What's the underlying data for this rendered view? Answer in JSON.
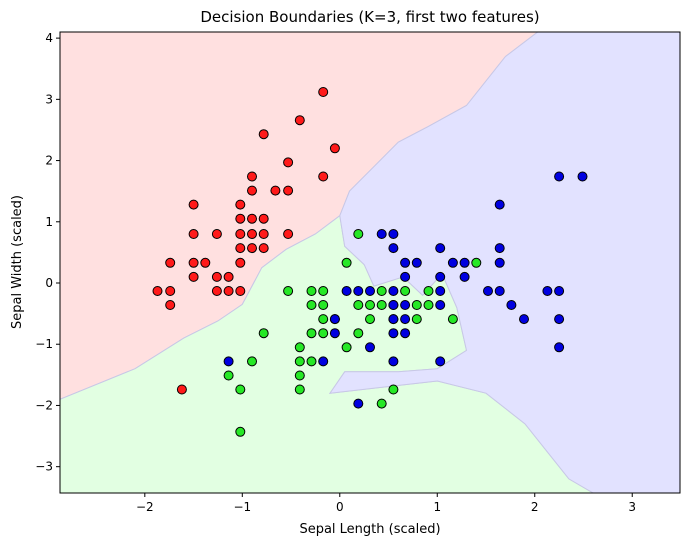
{
  "chart_data": {
    "type": "scatter",
    "title": "Decision Boundaries (K=3, first two features)",
    "xlabel": "Sepal Length (scaled)",
    "ylabel": "Sepal Width (scaled)",
    "xlim": [
      -2.87,
      3.49
    ],
    "ylim": [
      -3.43,
      4.1
    ],
    "xticks": [
      -2,
      -1,
      0,
      1,
      2,
      3
    ],
    "xtick_labels": [
      "−2",
      "−1",
      "0",
      "1",
      "2",
      "3"
    ],
    "yticks": [
      -3,
      -2,
      -1,
      0,
      1,
      2,
      3,
      4
    ],
    "ytick_labels": [
      "−3",
      "−2",
      "−1",
      "0",
      "1",
      "2",
      "3",
      "4"
    ],
    "grid": false,
    "legend": "none",
    "colors": {
      "region_red": "#ffe0e0",
      "region_green": "#e2ffe2",
      "region_blue": "#e2e2ff",
      "boundary": "#c8c8e6",
      "point_red": "#ff1a1a",
      "point_green": "#26e826",
      "point_blue": "#0000e0",
      "point_edge": "#000000"
    },
    "regions": [
      {
        "class": "red",
        "points": [
          [
            -2.87,
            4.1
          ],
          [
            2.03,
            4.1
          ],
          [
            1.7,
            3.7
          ],
          [
            1.3,
            2.9
          ],
          [
            0.9,
            2.55
          ],
          [
            0.6,
            2.3
          ],
          [
            0.35,
            1.9
          ],
          [
            0.1,
            1.5
          ],
          [
            0.0,
            1.1
          ],
          [
            -0.25,
            0.8
          ],
          [
            -0.55,
            0.55
          ],
          [
            -0.8,
            0.25
          ],
          [
            -1.0,
            -0.35
          ],
          [
            -1.25,
            -0.62
          ],
          [
            -1.6,
            -0.9
          ],
          [
            -2.1,
            -1.4
          ],
          [
            -2.87,
            -1.9
          ]
        ]
      },
      {
        "class": "green",
        "points": [
          [
            -2.87,
            -1.9
          ],
          [
            -2.1,
            -1.4
          ],
          [
            -1.6,
            -0.9
          ],
          [
            -1.25,
            -0.62
          ],
          [
            -1.0,
            -0.35
          ],
          [
            -0.8,
            0.25
          ],
          [
            -0.55,
            0.55
          ],
          [
            -0.25,
            0.8
          ],
          [
            0.0,
            1.1
          ],
          [
            0.05,
            0.6
          ],
          [
            0.25,
            0.3
          ],
          [
            0.35,
            -0.05
          ],
          [
            0.65,
            0.1
          ],
          [
            0.85,
            -0.2
          ],
          [
            1.05,
            0.15
          ],
          [
            1.2,
            -0.4
          ],
          [
            1.3,
            -1.1
          ],
          [
            1.0,
            -1.4
          ],
          [
            0.6,
            -1.45
          ],
          [
            0.05,
            -1.45
          ],
          [
            -0.1,
            -1.8
          ],
          [
            1.0,
            -1.6
          ],
          [
            1.5,
            -1.8
          ],
          [
            1.9,
            -2.3
          ],
          [
            2.1,
            -2.7
          ],
          [
            2.35,
            -3.2
          ],
          [
            2.6,
            -3.43
          ],
          [
            -2.87,
            -3.43
          ]
        ]
      },
      {
        "class": "blue",
        "points": [
          [
            2.03,
            4.1
          ],
          [
            3.49,
            4.1
          ],
          [
            3.49,
            -3.43
          ],
          [
            2.6,
            -3.43
          ],
          [
            2.35,
            -3.2
          ],
          [
            2.1,
            -2.7
          ],
          [
            1.9,
            -2.3
          ],
          [
            1.5,
            -1.8
          ],
          [
            1.0,
            -1.6
          ],
          [
            -0.1,
            -1.8
          ],
          [
            0.05,
            -1.45
          ],
          [
            0.6,
            -1.45
          ],
          [
            1.0,
            -1.4
          ],
          [
            1.3,
            -1.1
          ],
          [
            1.2,
            -0.4
          ],
          [
            1.05,
            0.15
          ],
          [
            0.85,
            -0.2
          ],
          [
            0.65,
            0.1
          ],
          [
            0.35,
            -0.05
          ],
          [
            0.25,
            0.3
          ],
          [
            0.05,
            0.6
          ],
          [
            0.0,
            1.1
          ],
          [
            0.1,
            1.5
          ],
          [
            0.35,
            1.9
          ],
          [
            0.6,
            2.3
          ],
          [
            0.9,
            2.55
          ],
          [
            1.3,
            2.9
          ],
          [
            1.7,
            3.7
          ]
        ]
      }
    ],
    "series": [
      {
        "class": "red",
        "points": [
          [
            -0.17,
            3.12
          ],
          [
            -0.41,
            2.66
          ],
          [
            -0.78,
            2.43
          ],
          [
            -0.05,
            2.2
          ],
          [
            -0.53,
            1.97
          ],
          [
            -0.9,
            1.74
          ],
          [
            -0.17,
            1.74
          ],
          [
            -0.9,
            1.51
          ],
          [
            -0.66,
            1.51
          ],
          [
            -0.53,
            1.51
          ],
          [
            -1.5,
            1.28
          ],
          [
            -1.02,
            1.28
          ],
          [
            -1.02,
            1.05
          ],
          [
            -0.9,
            1.05
          ],
          [
            -0.78,
            1.05
          ],
          [
            -1.5,
            0.8
          ],
          [
            -1.26,
            0.8
          ],
          [
            -1.02,
            0.8
          ],
          [
            -0.9,
            0.8
          ],
          [
            -0.78,
            0.8
          ],
          [
            -0.53,
            0.8
          ],
          [
            -1.02,
            0.57
          ],
          [
            -0.9,
            0.57
          ],
          [
            -0.78,
            0.57
          ],
          [
            -1.74,
            0.33
          ],
          [
            -1.5,
            0.33
          ],
          [
            -1.38,
            0.33
          ],
          [
            -1.02,
            0.33
          ],
          [
            -1.5,
            0.1
          ],
          [
            -1.26,
            0.1
          ],
          [
            -1.14,
            0.1
          ],
          [
            -1.87,
            -0.13
          ],
          [
            -1.74,
            -0.13
          ],
          [
            -1.26,
            -0.13
          ],
          [
            -1.14,
            -0.13
          ],
          [
            -1.02,
            -0.13
          ],
          [
            -1.74,
            -0.36
          ],
          [
            -1.62,
            -1.74
          ]
        ]
      },
      {
        "class": "green",
        "points": [
          [
            0.19,
            0.8
          ],
          [
            0.07,
            0.33
          ],
          [
            1.4,
            0.33
          ],
          [
            -0.53,
            -0.13
          ],
          [
            -0.29,
            -0.13
          ],
          [
            -0.17,
            -0.13
          ],
          [
            0.43,
            -0.13
          ],
          [
            0.67,
            -0.13
          ],
          [
            0.91,
            -0.13
          ],
          [
            -0.29,
            -0.36
          ],
          [
            -0.17,
            -0.36
          ],
          [
            0.19,
            -0.36
          ],
          [
            0.31,
            -0.36
          ],
          [
            0.43,
            -0.36
          ],
          [
            0.55,
            -0.36
          ],
          [
            0.79,
            -0.36
          ],
          [
            0.91,
            -0.36
          ],
          [
            -0.17,
            -0.59
          ],
          [
            -0.05,
            -0.59
          ],
          [
            0.31,
            -0.59
          ],
          [
            0.55,
            -0.59
          ],
          [
            0.79,
            -0.59
          ],
          [
            1.16,
            -0.59
          ],
          [
            -0.78,
            -0.82
          ],
          [
            -0.29,
            -0.82
          ],
          [
            -0.17,
            -0.82
          ],
          [
            0.19,
            -0.82
          ],
          [
            -0.41,
            -1.05
          ],
          [
            0.07,
            -1.05
          ],
          [
            -0.9,
            -1.28
          ],
          [
            -0.41,
            -1.28
          ],
          [
            -0.29,
            -1.28
          ],
          [
            -1.14,
            -1.51
          ],
          [
            -0.41,
            -1.51
          ],
          [
            -1.02,
            -1.74
          ],
          [
            -0.41,
            -1.74
          ],
          [
            0.55,
            -1.74
          ],
          [
            0.43,
            -1.97
          ],
          [
            -1.02,
            -2.43
          ]
        ]
      },
      {
        "class": "blue",
        "points": [
          [
            2.25,
            1.74
          ],
          [
            2.49,
            1.74
          ],
          [
            1.64,
            1.28
          ],
          [
            0.43,
            0.8
          ],
          [
            0.55,
            0.8
          ],
          [
            0.55,
            0.57
          ],
          [
            1.03,
            0.57
          ],
          [
            1.64,
            0.57
          ],
          [
            0.67,
            0.33
          ],
          [
            0.79,
            0.33
          ],
          [
            1.16,
            0.33
          ],
          [
            1.28,
            0.33
          ],
          [
            1.64,
            0.33
          ],
          [
            0.67,
            0.1
          ],
          [
            1.03,
            0.1
          ],
          [
            1.28,
            0.1
          ],
          [
            0.07,
            -0.13
          ],
          [
            0.19,
            -0.13
          ],
          [
            0.31,
            -0.13
          ],
          [
            0.55,
            -0.13
          ],
          [
            1.03,
            -0.13
          ],
          [
            1.52,
            -0.13
          ],
          [
            1.64,
            -0.13
          ],
          [
            2.13,
            -0.13
          ],
          [
            2.25,
            -0.13
          ],
          [
            0.55,
            -0.36
          ],
          [
            0.67,
            -0.36
          ],
          [
            1.03,
            -0.36
          ],
          [
            1.76,
            -0.36
          ],
          [
            -0.05,
            -0.59
          ],
          [
            0.55,
            -0.59
          ],
          [
            0.67,
            -0.59
          ],
          [
            1.89,
            -0.59
          ],
          [
            2.25,
            -0.59
          ],
          [
            -0.05,
            -0.82
          ],
          [
            0.55,
            -0.82
          ],
          [
            0.67,
            -0.82
          ],
          [
            0.31,
            -1.05
          ],
          [
            2.25,
            -1.05
          ],
          [
            -1.14,
            -1.28
          ],
          [
            -0.17,
            -1.28
          ],
          [
            0.55,
            -1.28
          ],
          [
            1.03,
            -1.28
          ],
          [
            0.19,
            -1.97
          ]
        ]
      }
    ]
  }
}
